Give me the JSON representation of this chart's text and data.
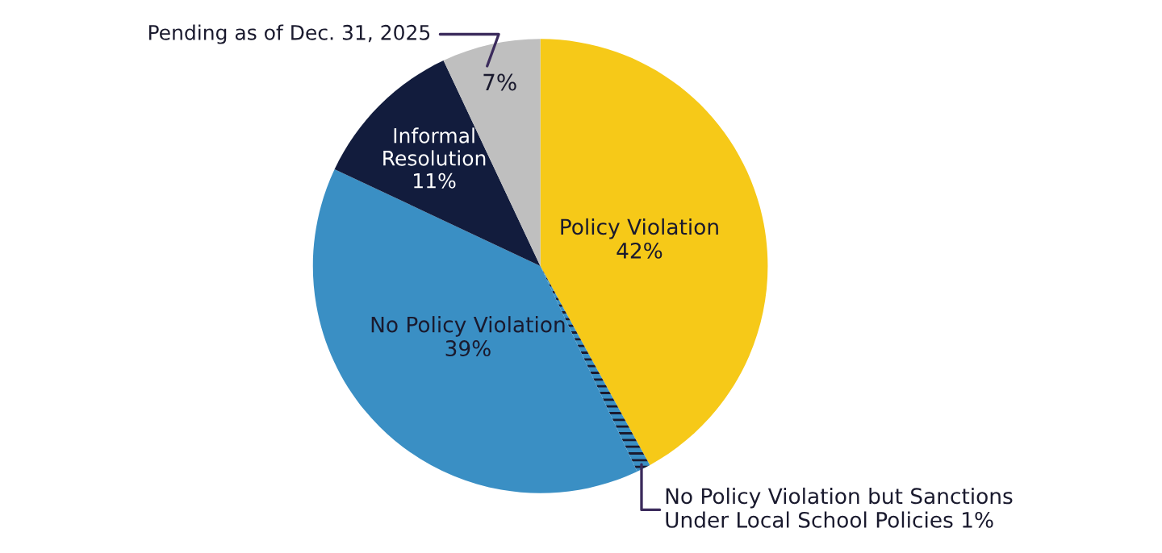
{
  "chart_data": {
    "type": "pie",
    "categories": [
      "Policy Violation",
      "No Policy Violation but Sanctions\nUnder Local School Policies",
      "No Policy Violation",
      "Informal\nResolution",
      "Pending as of Dec. 31, 2025"
    ],
    "values": [
      42,
      1,
      39,
      11,
      7
    ],
    "value_labels": [
      "42%",
      "1%",
      "39%",
      "11%",
      "7%"
    ],
    "colors": [
      "#f6c918",
      "#3a8fc4",
      "#3a8fc4",
      "#121c3d",
      "#bfbfbf"
    ]
  }
}
